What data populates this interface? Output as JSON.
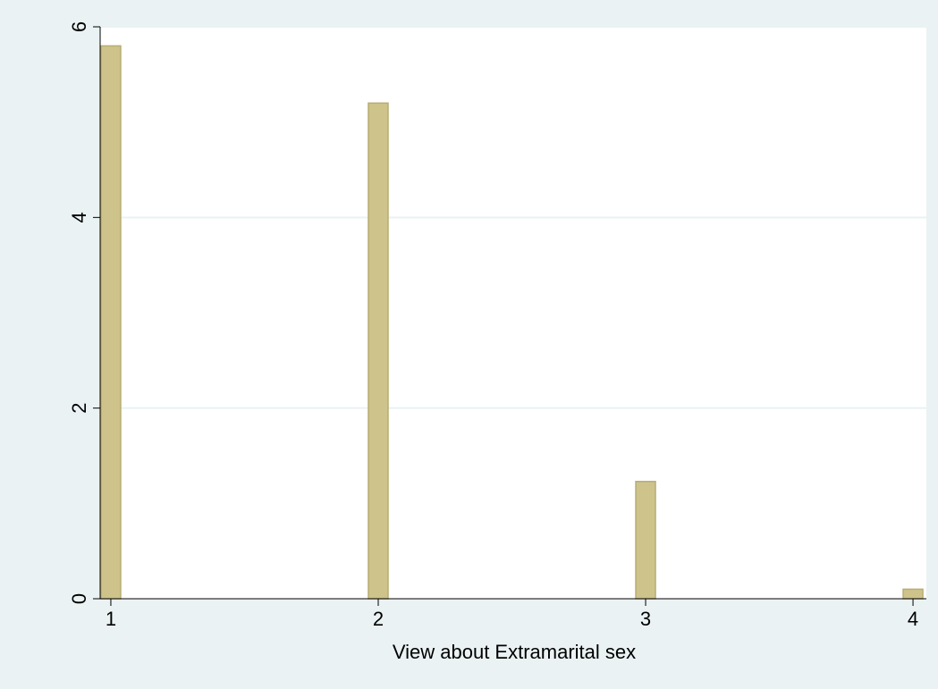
{
  "chart_data": {
    "type": "bar",
    "categories": [
      1,
      2,
      3,
      4
    ],
    "values": [
      5.8,
      5.2,
      1.23,
      0.1
    ],
    "xlabel": "View about Extramarital sex",
    "ylabel": "",
    "xlim": [
      0.96,
      4.05
    ],
    "ylim": [
      0,
      6
    ],
    "xticks": [
      "1",
      "2",
      "3",
      "4"
    ],
    "yticks": [
      "0",
      "2",
      "4",
      "6"
    ],
    "grid": true,
    "legend": "none"
  },
  "colors": {
    "outer_background": "#eaf2f3",
    "plot_background": "#ffffff",
    "bar_fill": "#cdc38b",
    "bar_stroke": "#b8ad72",
    "grid": "#eaf2f3",
    "axis": "#000000"
  }
}
